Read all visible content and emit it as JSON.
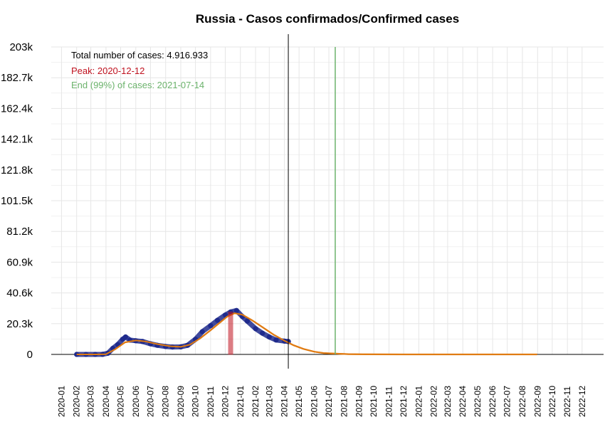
{
  "chart_data": {
    "type": "line",
    "title": "Russia - Casos confirmados/Confirmed cases",
    "xlabel": "",
    "ylabel": "",
    "y_tick_labels": [
      "0",
      "20.3k",
      "40.6k",
      "60.9k",
      "81.2k",
      "101.5k",
      "121.8k",
      "142.1k",
      "162.4k",
      "182.7k",
      "203k"
    ],
    "y_tick_values": [
      0,
      20300,
      40600,
      60900,
      81200,
      101500,
      121800,
      142100,
      162400,
      182700,
      203000
    ],
    "ylim": [
      0,
      203000
    ],
    "x_tick_labels": [
      "2020-01",
      "2020-02",
      "2020-03",
      "2020-04",
      "2020-05",
      "2020-06",
      "2020-07",
      "2020-08",
      "2020-09",
      "2020-10",
      "2020-11",
      "2020-12",
      "2021-01",
      "2021-02",
      "2021-03",
      "2021-04",
      "2021-05",
      "2021-06",
      "2021-07",
      "2021-08",
      "2021-09",
      "2021-10",
      "2021-11",
      "2021-12",
      "2022-01",
      "2022-02",
      "2022-03",
      "2022-04",
      "2022-05",
      "2022-06",
      "2022-07",
      "2022-08",
      "2022-09",
      "2022-10",
      "2022-11",
      "2022-12"
    ],
    "xlim": [
      "2019-12-11",
      "2023-01-14"
    ],
    "grid": true,
    "annotations": {
      "total": "Total number of cases: 4.916.933",
      "peak": "Peak: 2020-12-12",
      "end": "End (99%) of cases: 2021-07-14"
    },
    "peak_date": "2020-12-12",
    "peak_value": 28000,
    "end_date": "2021-07-14",
    "current_date": "2021-04-09",
    "colors": {
      "observed": "#1f2a8c",
      "fit": "#e07b12",
      "peak": "#c0121f",
      "end": "#6cb36c",
      "current": "#000000",
      "grid": "#e6e6e6"
    },
    "series": [
      {
        "kind": "observed",
        "x": [
          "2020-02-01",
          "2020-02-20",
          "2020-03-10",
          "2020-03-25",
          "2020-04-05",
          "2020-04-15",
          "2020-04-25",
          "2020-05-05",
          "2020-05-11",
          "2020-05-20",
          "2020-06-01",
          "2020-06-15",
          "2020-07-01",
          "2020-07-15",
          "2020-08-01",
          "2020-08-15",
          "2020-09-01",
          "2020-09-15",
          "2020-10-01",
          "2020-10-15",
          "2020-11-01",
          "2020-11-15",
          "2020-12-01",
          "2020-12-12",
          "2020-12-24",
          "2021-01-05",
          "2021-01-15",
          "2021-02-01",
          "2021-02-15",
          "2021-03-01",
          "2021-03-15",
          "2021-04-01",
          "2021-04-09"
        ],
        "y": [
          0,
          0,
          0,
          50,
          800,
          4000,
          6500,
          10000,
          11500,
          9500,
          9000,
          8500,
          7000,
          6000,
          5200,
          4900,
          5000,
          6000,
          10000,
          15000,
          19000,
          22500,
          26000,
          28000,
          29000,
          25000,
          22000,
          17000,
          14000,
          11500,
          9500,
          8800,
          8500
        ]
      },
      {
        "kind": "fit",
        "x": [
          "2020-02-01",
          "2020-03-10",
          "2020-04-01",
          "2020-04-20",
          "2020-05-10",
          "2020-06-01",
          "2020-06-20",
          "2020-07-15",
          "2020-08-10",
          "2020-09-01",
          "2020-09-20",
          "2020-10-10",
          "2020-11-01",
          "2020-11-20",
          "2020-12-05",
          "2020-12-20",
          "2021-01-05",
          "2021-01-25",
          "2021-02-15",
          "2021-03-10",
          "2021-04-01",
          "2021-04-20",
          "2021-05-10",
          "2021-06-01",
          "2021-06-20",
          "2021-07-14",
          "2021-08-10",
          "2021-09-15",
          "2021-12-01",
          "2022-04-01",
          "2022-08-31"
        ],
        "y": [
          0,
          0,
          100,
          3500,
          8000,
          9200,
          8600,
          6800,
          5400,
          5000,
          6500,
          10500,
          16000,
          21000,
          25000,
          27200,
          26200,
          22500,
          18000,
          13000,
          9000,
          6000,
          3600,
          1800,
          900,
          500,
          200,
          60,
          20,
          5,
          0
        ]
      }
    ]
  }
}
